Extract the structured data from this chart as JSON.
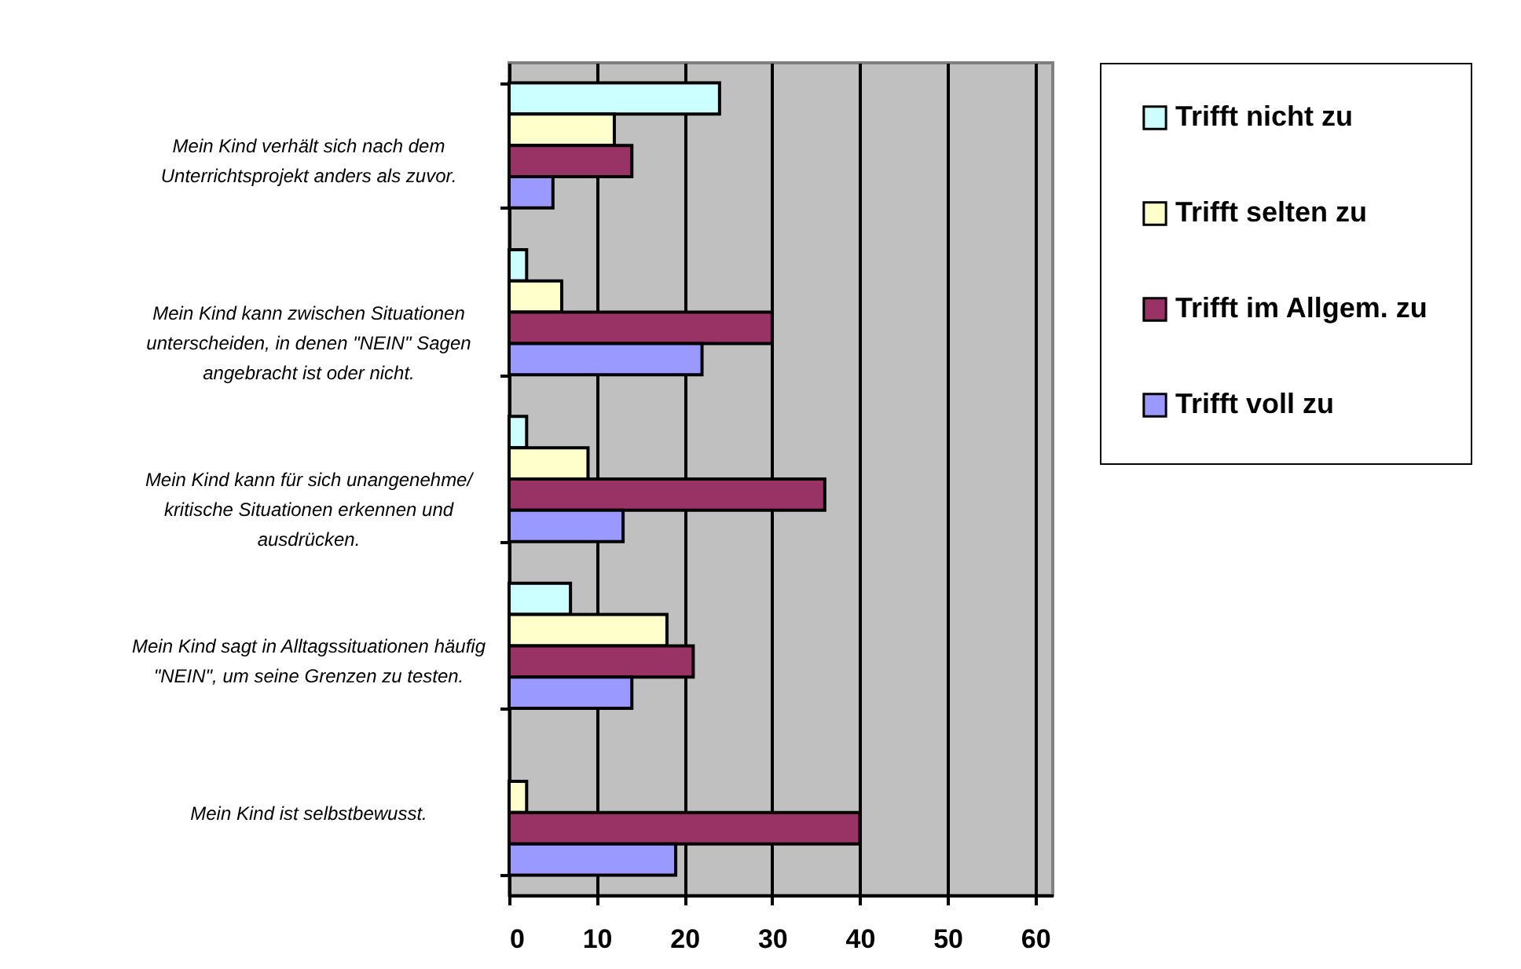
{
  "chart_data": {
    "type": "bar",
    "orientation": "horizontal",
    "categories": [
      "Mein Kind verhält sich nach dem Unterrichtsprojekt anders als zuvor.",
      "Mein Kind kann zwischen Situationen unterscheiden, in denen \"NEIN\" Sagen angebracht ist oder nicht.",
      "Mein Kind kann für sich unangenehme/ kritische Situationen erkennen und ausdrücken.",
      "Mein Kind sagt in Alltagssituationen häufig \"NEIN\", um seine Grenzen zu testen.",
      "Mein Kind ist selbstbewusst."
    ],
    "series": [
      {
        "name": "Trifft nicht zu",
        "color": "#ccffff",
        "values": [
          24,
          2,
          2,
          7,
          null
        ]
      },
      {
        "name": "Trifft selten zu",
        "color": "#ffffcc",
        "values": [
          12,
          6,
          9,
          18,
          2
        ]
      },
      {
        "name": "Trifft im Allgem. zu",
        "color": "#993366",
        "values": [
          14,
          30,
          36,
          21,
          40
        ]
      },
      {
        "name": "Trifft voll zu",
        "color": "#9999ff",
        "values": [
          5,
          22,
          13,
          14,
          19
        ]
      }
    ],
    "xlim": [
      0,
      62
    ],
    "xticks": [
      0,
      10,
      20,
      30,
      40,
      50,
      60
    ],
    "grid": true,
    "legend": "right"
  }
}
